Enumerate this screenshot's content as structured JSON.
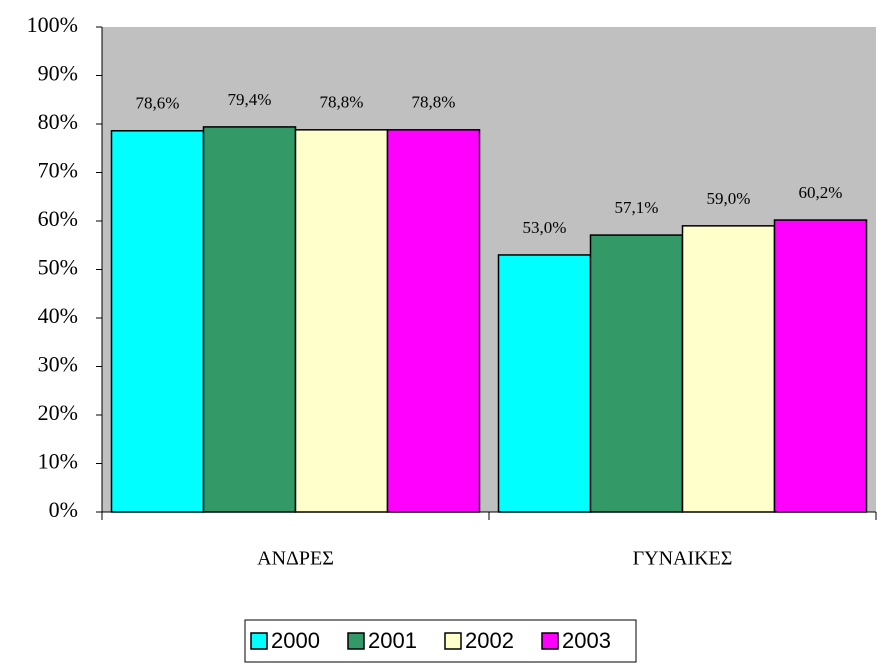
{
  "chart_data": {
    "type": "bar",
    "categories": [
      "ΑΝΔΡΕΣ",
      "ΓΥΝΑΙΚΕΣ"
    ],
    "series": [
      {
        "name": "2000",
        "color": "#00FFFF",
        "values": [
          78.6,
          53.0
        ],
        "value_labels": [
          "78,6%",
          "53,0%"
        ]
      },
      {
        "name": "2001",
        "color": "#339966",
        "values": [
          79.4,
          57.1
        ],
        "value_labels": [
          "79,4%",
          "57,1%"
        ]
      },
      {
        "name": "2002",
        "color": "#FFFFCC",
        "values": [
          78.8,
          59.0
        ],
        "value_labels": [
          "78,8%",
          "59,0%"
        ]
      },
      {
        "name": "2003",
        "color": "#FF00FF",
        "values": [
          78.8,
          60.2
        ],
        "value_labels": [
          "78,8%",
          "60,2%"
        ]
      }
    ],
    "ylim": [
      0,
      100
    ],
    "yticks": [
      {
        "value": 0,
        "label": "0%"
      },
      {
        "value": 10,
        "label": "10%"
      },
      {
        "value": 20,
        "label": "20%"
      },
      {
        "value": 30,
        "label": "30%"
      },
      {
        "value": 40,
        "label": "40%"
      },
      {
        "value": 50,
        "label": "50%"
      },
      {
        "value": 60,
        "label": "60%"
      },
      {
        "value": 70,
        "label": "70%"
      },
      {
        "value": 80,
        "label": "80%"
      },
      {
        "value": 90,
        "label": "90%"
      },
      {
        "value": 100,
        "label": "100%"
      }
    ],
    "plot_background": "#C0C0C0",
    "legend": "bottom"
  }
}
